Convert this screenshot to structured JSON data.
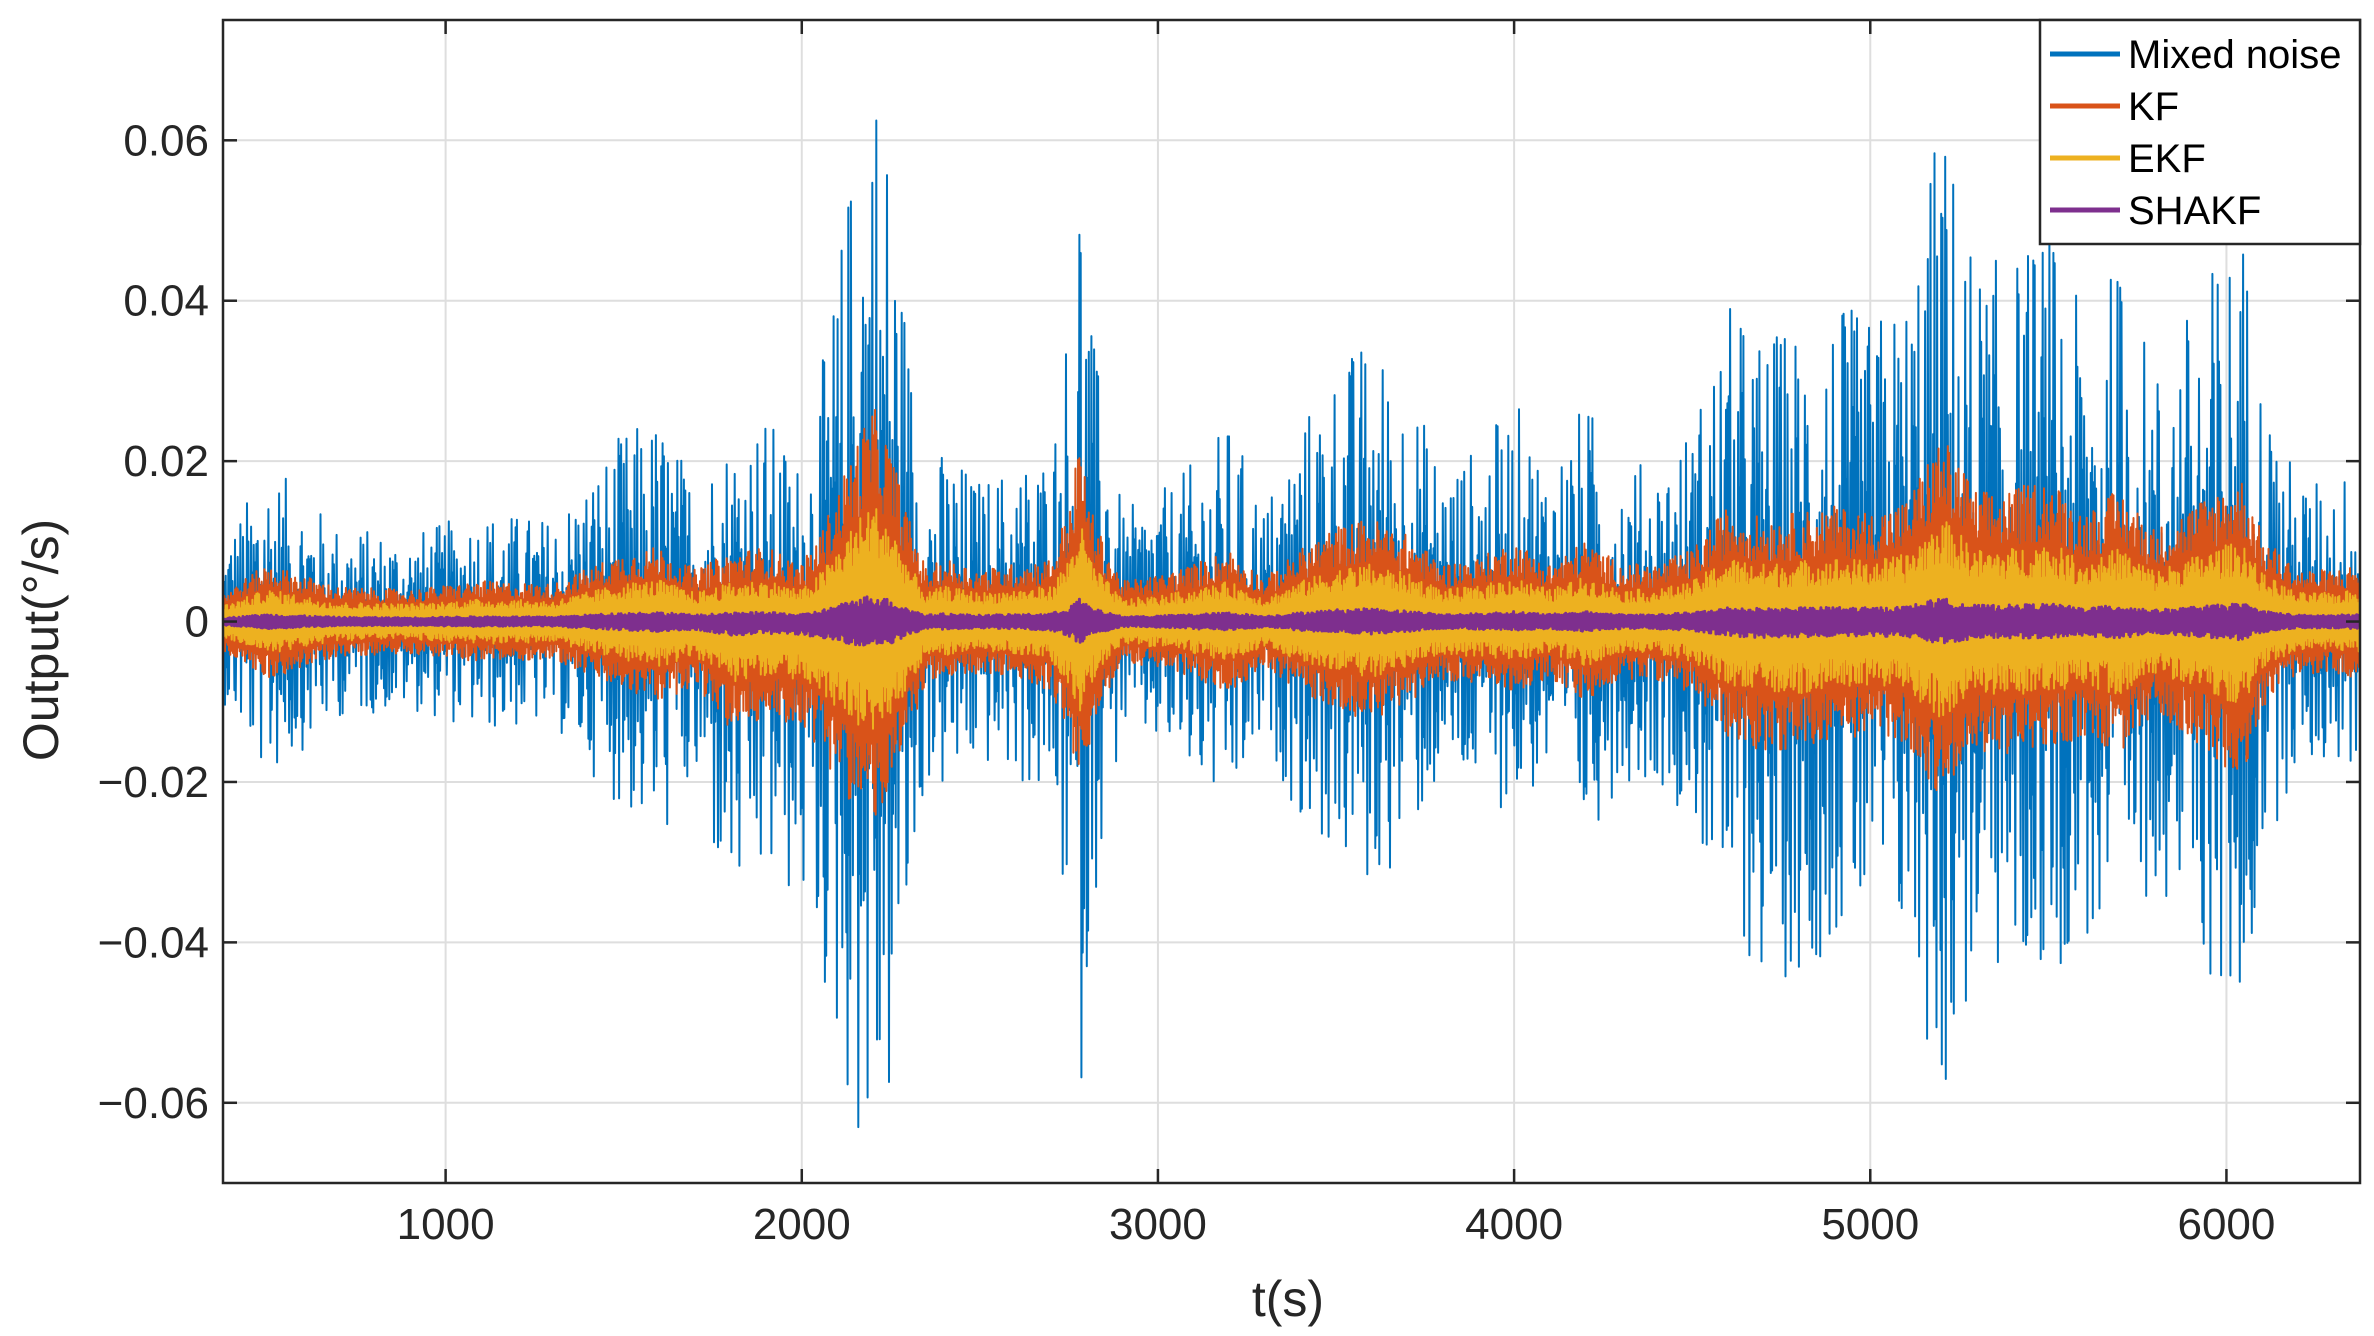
{
  "chart_data": {
    "type": "line",
    "xlabel": "t(s)",
    "ylabel": "Output(°/s)",
    "xlim": [
      375,
      6375
    ],
    "ylim": [
      -0.07,
      0.075
    ],
    "grid": true,
    "legend_position": "top-right",
    "x_ticks": [
      1000,
      2000,
      3000,
      4000,
      5000,
      6000
    ],
    "x_tick_labels": [
      "1000",
      "2000",
      "3000",
      "4000",
      "5000",
      "6000"
    ],
    "y_ticks": [
      -0.06,
      -0.04,
      -0.02,
      0,
      0.02,
      0.04,
      0.06
    ],
    "y_tick_labels": [
      "−0.06",
      "−0.04",
      "−0.02",
      "0",
      "0.02",
      "0.04",
      "0.06"
    ],
    "series": [
      {
        "name": "Mixed noise",
        "color": "#0072BD",
        "scale": 1.0,
        "envelope_t": [
          375,
          500,
          700,
          900,
          1100,
          1300,
          1500,
          1600,
          1700,
          1800,
          1900,
          2000,
          2050,
          2100,
          2150,
          2200,
          2250,
          2300,
          2350,
          2400,
          2500,
          2600,
          2700,
          2750,
          2780,
          2820,
          2900,
          3000,
          3100,
          3200,
          3300,
          3400,
          3500,
          3600,
          3700,
          3800,
          3900,
          4000,
          4100,
          4200,
          4300,
          4400,
          4500,
          4600,
          4700,
          4800,
          4900,
          5000,
          5100,
          5200,
          5300,
          5400,
          5500,
          5600,
          5700,
          5800,
          5900,
          6000,
          6050,
          6100,
          6200,
          6300,
          6375
        ],
        "envelope_pos": [
          0.01,
          0.02,
          0.012,
          0.011,
          0.014,
          0.013,
          0.024,
          0.026,
          0.018,
          0.024,
          0.026,
          0.02,
          0.03,
          0.045,
          0.062,
          0.075,
          0.06,
          0.036,
          0.018,
          0.022,
          0.018,
          0.02,
          0.022,
          0.04,
          0.063,
          0.035,
          0.014,
          0.016,
          0.02,
          0.025,
          0.015,
          0.025,
          0.033,
          0.036,
          0.03,
          0.02,
          0.022,
          0.028,
          0.02,
          0.028,
          0.02,
          0.02,
          0.025,
          0.04,
          0.036,
          0.038,
          0.04,
          0.038,
          0.042,
          0.065,
          0.045,
          0.046,
          0.05,
          0.038,
          0.046,
          0.032,
          0.04,
          0.048,
          0.05,
          0.03,
          0.018,
          0.018,
          0.02
        ],
        "envelope_neg": [
          -0.01,
          -0.02,
          -0.012,
          -0.011,
          -0.014,
          -0.013,
          -0.024,
          -0.028,
          -0.022,
          -0.038,
          -0.034,
          -0.036,
          -0.045,
          -0.055,
          -0.065,
          -0.07,
          -0.062,
          -0.04,
          -0.02,
          -0.022,
          -0.018,
          -0.02,
          -0.024,
          -0.04,
          -0.062,
          -0.035,
          -0.014,
          -0.016,
          -0.02,
          -0.025,
          -0.015,
          -0.025,
          -0.03,
          -0.035,
          -0.028,
          -0.02,
          -0.022,
          -0.024,
          -0.02,
          -0.028,
          -0.02,
          -0.02,
          -0.025,
          -0.04,
          -0.045,
          -0.045,
          -0.04,
          -0.04,
          -0.042,
          -0.062,
          -0.045,
          -0.046,
          -0.045,
          -0.04,
          -0.046,
          -0.032,
          -0.04,
          -0.051,
          -0.052,
          -0.03,
          -0.018,
          -0.018,
          -0.02
        ]
      },
      {
        "name": "KF",
        "color": "#D95319",
        "scale": 0.36
      },
      {
        "name": "EKF",
        "color": "#EDB120",
        "scale": 0.2
      },
      {
        "name": "SHAKF",
        "color": "#7E2F8E",
        "scale": 0.045
      }
    ]
  },
  "colors": {
    "axis": "#262626",
    "grid": "#dedede",
    "background": "#ffffff"
  }
}
